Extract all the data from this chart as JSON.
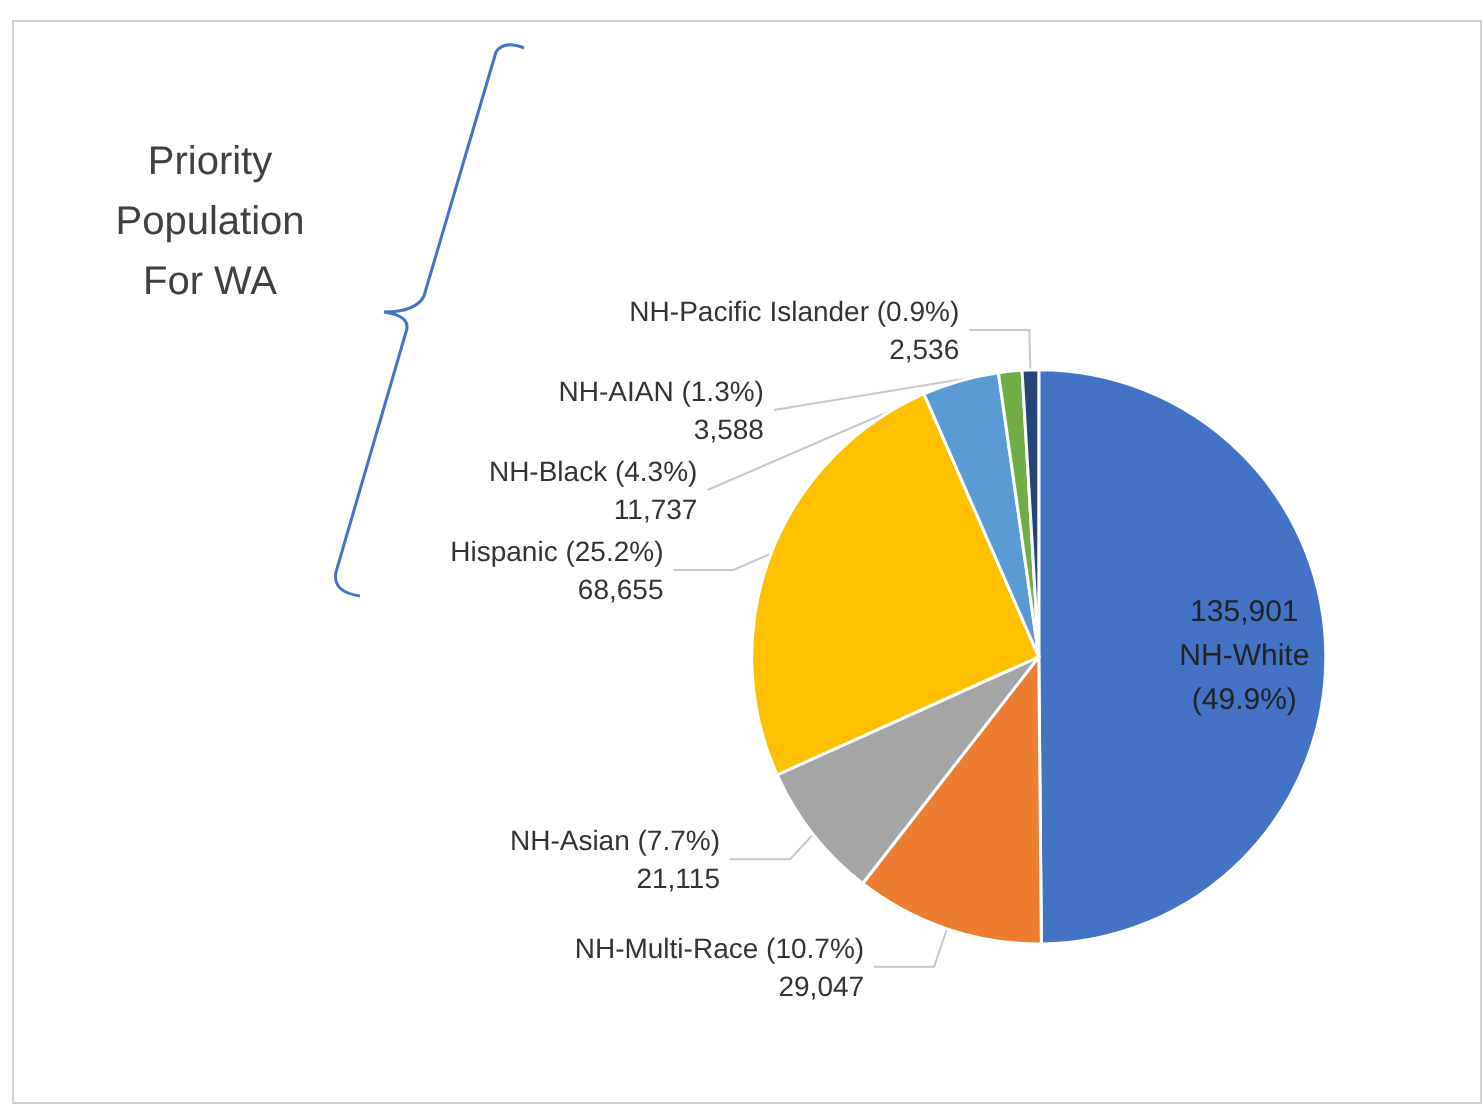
{
  "chart_data": {
    "type": "pie",
    "categories": [
      "NH-White (49.9%)",
      "NH-Multi-Race (10.7%)",
      "NH-Asian (7.7%)",
      "Hispanic (25.2%)",
      "NH-Black (4.3%)",
      "NH-AIAN (1.3%)",
      "NH-Pacific Islander (0.9%)"
    ],
    "values": [
      135901,
      29047,
      21115,
      68655,
      11737,
      3588,
      2536
    ],
    "value_labels": [
      "135,901",
      "29,047",
      "21,115",
      "68,655",
      "11,737",
      "3,588",
      "2,536"
    ],
    "colors": [
      "#4472c4",
      "#ed7d31",
      "#a5a5a5",
      "#ffc000",
      "#5b9bd5",
      "#70ad47",
      "#264478"
    ],
    "annotations": [
      "Priority Population For WA"
    ],
    "legend": false
  }
}
